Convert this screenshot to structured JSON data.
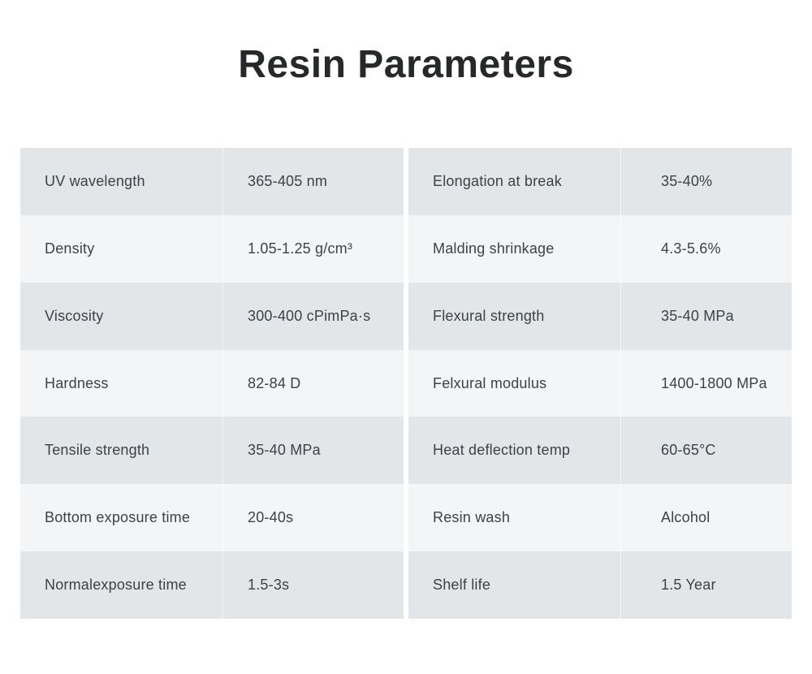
{
  "title": "Resin Parameters",
  "colors": {
    "background": "#ffffff",
    "row_odd": "#e2e6e9",
    "row_even": "#f3f5f7",
    "title_text": "#26282a",
    "cell_text": "#3d4246"
  },
  "table": {
    "left_rows": [
      {
        "label": "UV wavelength",
        "value": "365-405 nm"
      },
      {
        "label": "Density",
        "value": "1.05-1.25 g/cm³"
      },
      {
        "label": "Viscosity",
        "value": "300-400 cPimPa·s"
      },
      {
        "label": "Hardness",
        "value": "82-84 D"
      },
      {
        "label": "Tensile strength",
        "value": "35-40 MPa"
      },
      {
        "label": "Bottom exposure time",
        "value": "20-40s"
      },
      {
        "label": "Normalexposure time",
        "value": "1.5-3s"
      }
    ],
    "right_rows": [
      {
        "label": "Elongation at break",
        "value": "35-40%"
      },
      {
        "label": "Malding shrinkage",
        "value": "4.3-5.6%"
      },
      {
        "label": "Flexural strength",
        "value": "35-40 MPa"
      },
      {
        "label": "Felxural modulus",
        "value": "1400-1800 MPa"
      },
      {
        "label": "Heat deflection temp",
        "value": "60-65°C"
      },
      {
        "label": "Resin wash",
        "value": "Alcohol"
      },
      {
        "label": "Shelf life",
        "value": "1.5 Year"
      }
    ]
  }
}
